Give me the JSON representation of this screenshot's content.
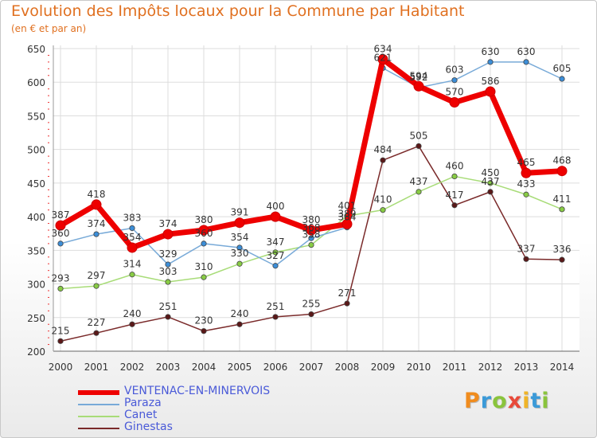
{
  "header": {
    "title": "Evolution des Impôts locaux pour la Commune par Habitant",
    "subtitle": "(en € et par an)"
  },
  "logo": {
    "letters": [
      "P",
      "r",
      "o",
      "x",
      "i",
      "t",
      "i"
    ]
  },
  "chart_data": {
    "type": "line",
    "title": "Evolution des Impôts locaux pour la Commune par Habitant",
    "subtitle": "(en € et par an)",
    "xlabel": "",
    "ylabel": "",
    "x": [
      "2000",
      "2001",
      "2002",
      "2003",
      "2004",
      "2005",
      "2006",
      "2007",
      "2008",
      "2009",
      "2010",
      "2011",
      "2012",
      "2013",
      "2014"
    ],
    "ylim": [
      200,
      650
    ],
    "yticks": [
      200,
      250,
      300,
      350,
      400,
      450,
      500,
      550,
      600,
      650
    ],
    "grid": true,
    "legend": "bottom-left",
    "series": [
      {
        "name": "Ginestas",
        "color": "#7a2a2a",
        "marker": "#5a1818",
        "values": [
          215,
          227,
          240,
          251,
          230,
          240,
          251,
          255,
          271,
          484,
          505,
          417,
          437,
          337,
          336
        ]
      },
      {
        "name": "Canet",
        "color": "#a8dc78",
        "marker": "#88cc44",
        "values": [
          293,
          297,
          314,
          303,
          310,
          330,
          347,
          358,
          401,
          410,
          437,
          460,
          450,
          433,
          411
        ]
      },
      {
        "name": "Paraza",
        "color": "#78aad8",
        "marker": "#3c8ed8",
        "values": [
          360,
          374,
          383,
          329,
          360,
          354,
          327,
          368,
          384,
          621,
          592,
          603,
          630,
          630,
          605
        ]
      },
      {
        "name": "VENTENAC-EN-MINERVOIS",
        "color": "#ee0000",
        "marker": "#ee0000",
        "values": [
          387,
          418,
          354,
          374,
          380,
          391,
          400,
          380,
          389,
          634,
          594,
          570,
          586,
          465,
          468
        ]
      }
    ]
  }
}
